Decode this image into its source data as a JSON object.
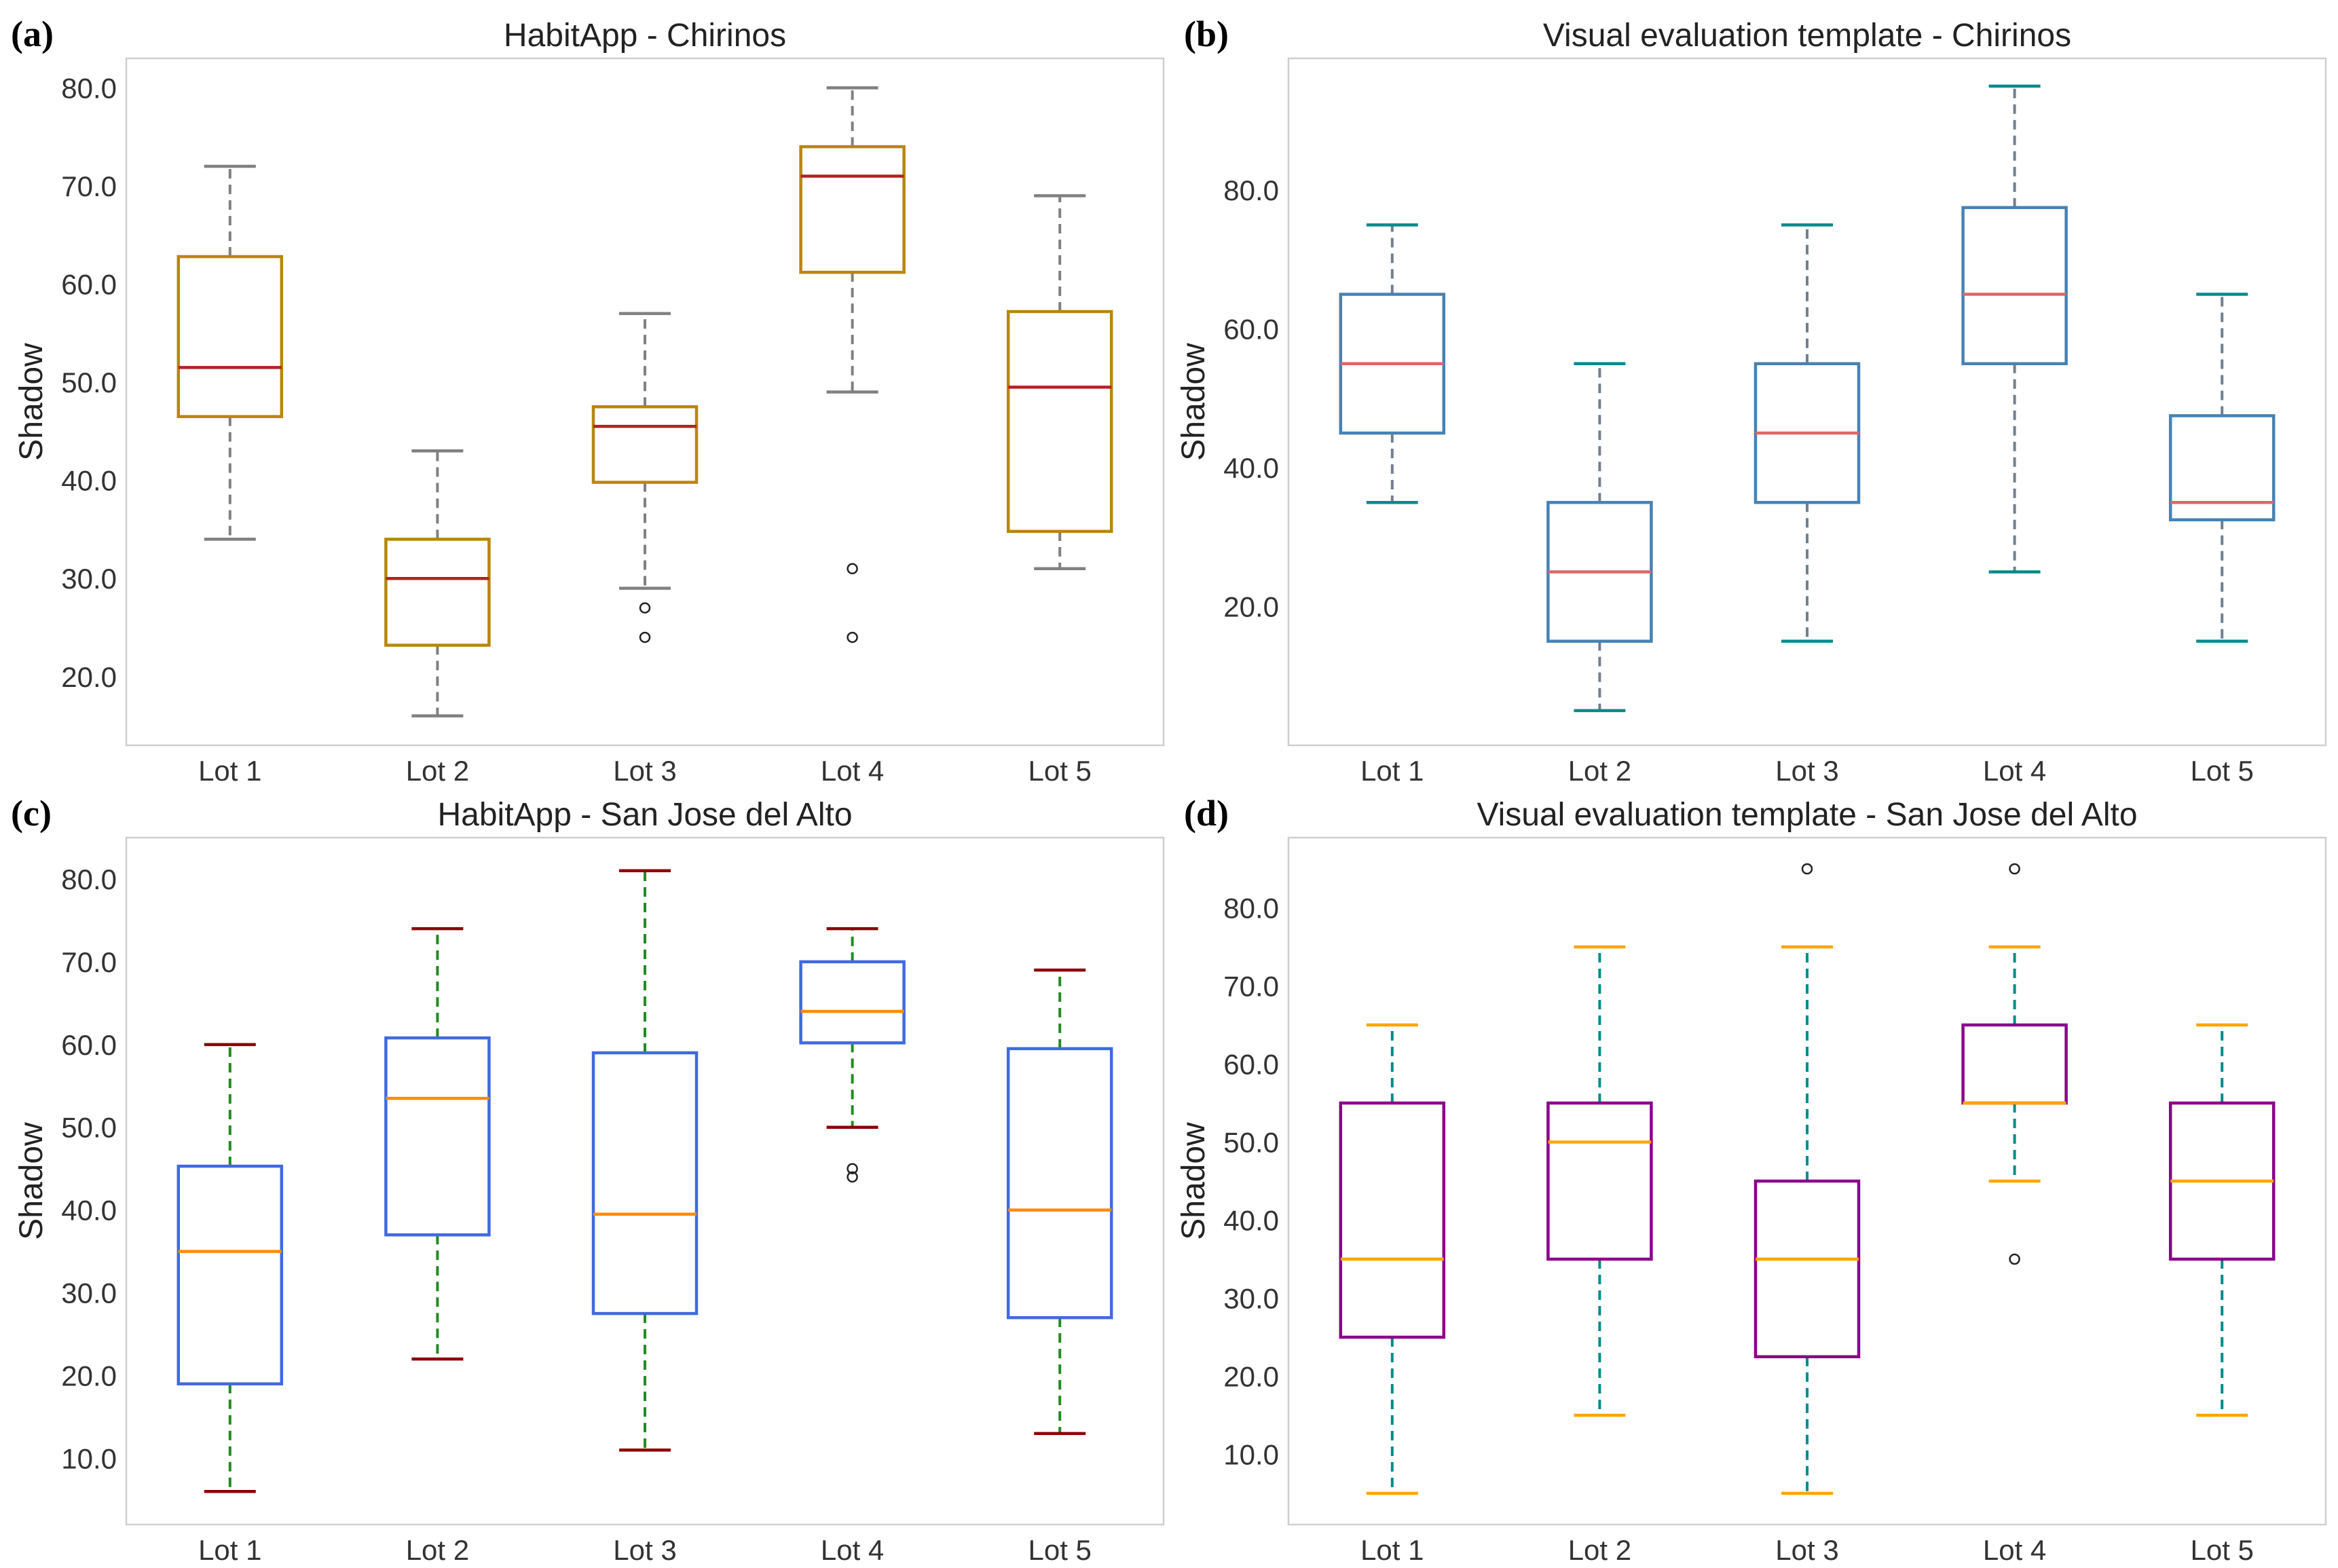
{
  "chart_data": [
    {
      "type": "box",
      "panel": "(a)",
      "title": "HabitApp - Chirinos",
      "ylabel": "Shadow",
      "xlabel": "",
      "categories": [
        "Lot 1",
        "Lot 2",
        "Lot 3",
        "Lot 4",
        "Lot 5"
      ],
      "ylim": [
        13,
        83
      ],
      "yticks": [
        20,
        30,
        40,
        50,
        60,
        70,
        80
      ],
      "ytick_labels": [
        "20.0",
        "30.0",
        "40.0",
        "50.0",
        "60.0",
        "70.0",
        "80.0"
      ],
      "boxes": [
        {
          "whislo": 34,
          "q1": 46.5,
          "med": 51.5,
          "q3": 62.8,
          "whishi": 72,
          "fliers": []
        },
        {
          "whislo": 16,
          "q1": 23.2,
          "med": 30,
          "q3": 34,
          "whishi": 43,
          "fliers": []
        },
        {
          "whislo": 29,
          "q1": 39.8,
          "med": 45.5,
          "q3": 47.5,
          "whishi": 57,
          "fliers": [
            27,
            24
          ]
        },
        {
          "whislo": 49,
          "q1": 61.2,
          "med": 71,
          "q3": 74,
          "whishi": 80,
          "fliers": [
            31,
            24
          ]
        },
        {
          "whislo": 31,
          "q1": 34.8,
          "med": 49.5,
          "q3": 57.2,
          "whishi": 69,
          "fliers": []
        }
      ],
      "colors": {
        "box": "#b8860b",
        "median": "#b22222",
        "whisker": "#808080",
        "cap": "#808080",
        "whisker_dashed": true
      }
    },
    {
      "type": "box",
      "panel": "(b)",
      "title": "Visual evaluation template - Chirinos",
      "ylabel": "Shadow",
      "xlabel": "",
      "categories": [
        "Lot 1",
        "Lot 2",
        "Lot 3",
        "Lot 4",
        "Lot 5"
      ],
      "ylim": [
        0,
        99
      ],
      "yticks": [
        20,
        40,
        60,
        80
      ],
      "ytick_labels": [
        "20.0",
        "40.0",
        "60.0",
        "80.0"
      ],
      "boxes": [
        {
          "whislo": 35,
          "q1": 45,
          "med": 55,
          "q3": 65,
          "whishi": 75,
          "fliers": []
        },
        {
          "whislo": 5,
          "q1": 15,
          "med": 25,
          "q3": 35,
          "whishi": 55,
          "fliers": []
        },
        {
          "whislo": 15,
          "q1": 35,
          "med": 45,
          "q3": 55,
          "whishi": 75,
          "fliers": []
        },
        {
          "whislo": 25,
          "q1": 55,
          "med": 65,
          "q3": 77.5,
          "whishi": 95,
          "fliers": []
        },
        {
          "whislo": 15,
          "q1": 32.5,
          "med": 35,
          "q3": 47.5,
          "whishi": 65,
          "fliers": []
        }
      ],
      "colors": {
        "box": "#4682b4",
        "median": "#e06666",
        "whisker": "#708090",
        "cap": "#008b8b",
        "whisker_dashed": true
      }
    },
    {
      "type": "box",
      "panel": "(c)",
      "title": "HabitApp - San Jose del Alto",
      "ylabel": "Shadow",
      "xlabel": "",
      "categories": [
        "Lot 1",
        "Lot 2",
        "Lot 3",
        "Lot 4",
        "Lot 5"
      ],
      "ylim": [
        2,
        85
      ],
      "yticks": [
        10,
        20,
        30,
        40,
        50,
        60,
        70,
        80
      ],
      "ytick_labels": [
        "10.0",
        "20.0",
        "30.0",
        "40.0",
        "50.0",
        "60.0",
        "70.0",
        "80.0"
      ],
      "boxes": [
        {
          "whislo": 6,
          "q1": 19,
          "med": 35,
          "q3": 45.3,
          "whishi": 60,
          "fliers": []
        },
        {
          "whislo": 22,
          "q1": 37,
          "med": 53.5,
          "q3": 60.8,
          "whishi": 74,
          "fliers": []
        },
        {
          "whislo": 11,
          "q1": 27.5,
          "med": 39.5,
          "q3": 59,
          "whishi": 81,
          "fliers": []
        },
        {
          "whislo": 50,
          "q1": 60.2,
          "med": 64,
          "q3": 70,
          "whishi": 74,
          "fliers": [
            45,
            44
          ]
        },
        {
          "whislo": 13,
          "q1": 27,
          "med": 40,
          "q3": 59.5,
          "whishi": 69,
          "fliers": []
        }
      ],
      "colors": {
        "box": "#4169e1",
        "median": "#ff8c00",
        "whisker": "#228b22",
        "cap": "#8b0000",
        "whisker_dashed": true
      }
    },
    {
      "type": "box",
      "panel": "(d)",
      "title": "Visual evaluation template - San Jose del Alto",
      "ylabel": "Shadow",
      "xlabel": "",
      "categories": [
        "Lot 1",
        "Lot 2",
        "Lot 3",
        "Lot 4",
        "Lot 5"
      ],
      "ylim": [
        1,
        89
      ],
      "yticks": [
        10,
        20,
        30,
        40,
        50,
        60,
        70,
        80
      ],
      "ytick_labels": [
        "10.0",
        "20.0",
        "30.0",
        "40.0",
        "50.0",
        "60.0",
        "70.0",
        "80.0"
      ],
      "boxes": [
        {
          "whislo": 5,
          "q1": 25,
          "med": 35,
          "q3": 55,
          "whishi": 65,
          "fliers": []
        },
        {
          "whislo": 15,
          "q1": 35,
          "med": 50,
          "q3": 55,
          "whishi": 75,
          "fliers": []
        },
        {
          "whislo": 5,
          "q1": 22.5,
          "med": 35,
          "q3": 45,
          "whishi": 75,
          "fliers": [
            85
          ]
        },
        {
          "whislo": 45,
          "q1": 55,
          "med": 55,
          "q3": 65,
          "whishi": 75,
          "fliers": [
            85,
            35
          ]
        },
        {
          "whislo": 15,
          "q1": 35,
          "med": 45,
          "q3": 55,
          "whishi": 65,
          "fliers": []
        }
      ],
      "colors": {
        "box": "#8b008b",
        "median": "#ffa500",
        "whisker": "#008b8b",
        "cap": "#ffa500",
        "whisker_dashed": true
      }
    }
  ]
}
